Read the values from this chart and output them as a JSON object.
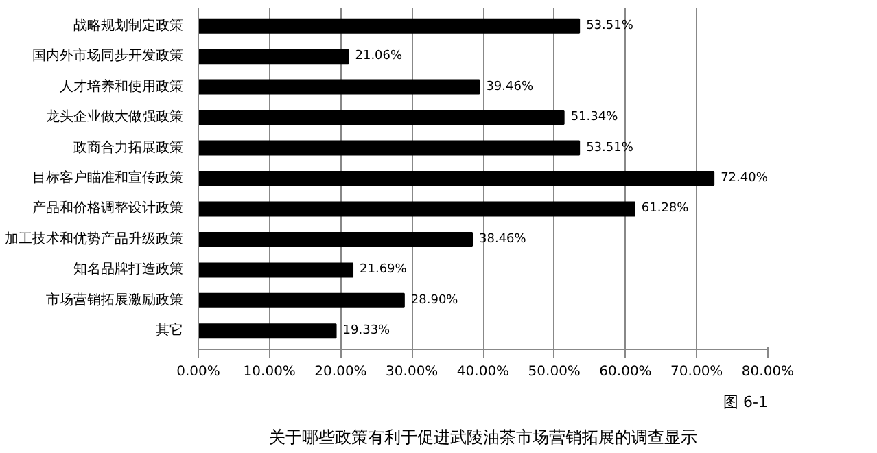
{
  "chart_data": {
    "type": "bar",
    "orientation": "horizontal",
    "title": "关于哪些政策有利于促进武陵油茶市场营销拓展的调查显示",
    "categories": [
      "战略规划制定政策",
      "国内外市场同步开发政策",
      "人才培养和使用政策",
      "龙头企业做大做强政策",
      "政商合力拓展政策",
      "目标客户瞄准和宣传政策",
      "产品和价格调整设计政策",
      "加工技术和优势产品升级政策",
      "知名品牌打造政策",
      "市场营销拓展激励政策",
      "其它"
    ],
    "values": [
      53.51,
      21.06,
      39.46,
      51.34,
      53.51,
      72.4,
      61.28,
      38.46,
      21.69,
      28.9,
      19.33
    ],
    "value_labels": [
      "53.51%",
      "21.06%",
      "39.46%",
      "51.34%",
      "53.51%",
      "72.40%",
      "61.28%",
      "38.46%",
      "21.69%",
      "28.90%",
      "19.33%"
    ],
    "color": "#000000",
    "xlim": [
      0,
      80
    ],
    "xticks": [
      {
        "value": 0,
        "label": "0.00%"
      },
      {
        "value": 10,
        "label": "10.00%"
      },
      {
        "value": 20,
        "label": "20.00%"
      },
      {
        "value": 30,
        "label": "30.00%"
      },
      {
        "value": 40,
        "label": "40.00%"
      },
      {
        "value": 50,
        "label": "50.00%"
      },
      {
        "value": 60,
        "label": "60.00%"
      },
      {
        "value": 70,
        "label": "70.00%"
      },
      {
        "value": 80,
        "label": "80.00%"
      }
    ],
    "grid": "x",
    "annotations": [
      "图 6-1"
    ]
  }
}
